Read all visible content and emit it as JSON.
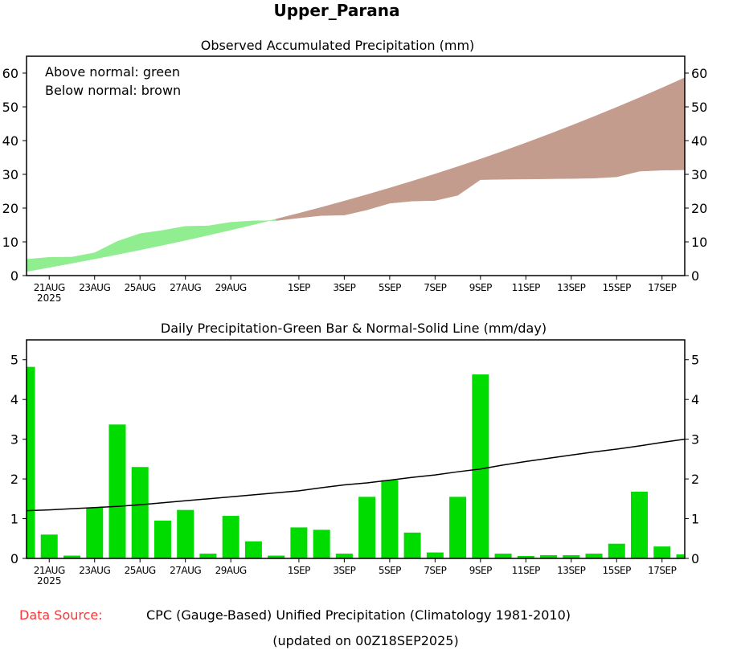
{
  "title": "Upper_Parana",
  "chart_data": [
    {
      "type": "area",
      "title": "Observed Accumulated Precipitation (mm)",
      "legend": [
        "Above normal: green",
        "Below normal: brown"
      ],
      "legend_placement": "top-left",
      "ylim": [
        0,
        65
      ],
      "yticks": [
        0,
        10,
        20,
        30,
        40,
        50,
        60
      ],
      "x_tick_labels": [
        {
          "day": 1,
          "label": "21AUG",
          "sub": "2025"
        },
        {
          "day": 3,
          "label": "23AUG"
        },
        {
          "day": 5,
          "label": "25AUG"
        },
        {
          "day": 7,
          "label": "27AUG"
        },
        {
          "day": 9,
          "label": "29AUG"
        },
        {
          "day": 12,
          "label": "1SEP"
        },
        {
          "day": 14,
          "label": "3SEP"
        },
        {
          "day": 16,
          "label": "5SEP"
        },
        {
          "day": 18,
          "label": "7SEP"
        },
        {
          "day": 20,
          "label": "9SEP"
        },
        {
          "day": 22,
          "label": "11SEP"
        },
        {
          "day": 24,
          "label": "13SEP"
        },
        {
          "day": 26,
          "label": "15SEP"
        },
        {
          "day": 28,
          "label": "17SEP"
        }
      ],
      "series": [
        {
          "name": "Observed accumulated",
          "derived_from": "daily observed cumulative sum"
        },
        {
          "name": "Normal accumulated",
          "derived_from": "daily normal cumulative sum"
        }
      ],
      "colors": {
        "above": "#90ee90",
        "below": "#c49c8e"
      }
    },
    {
      "type": "bar",
      "title": "Daily Precipitation-Green Bar & Normal-Solid Line (mm/day)",
      "ylim": [
        0,
        5.5
      ],
      "yticks": [
        0,
        1,
        2,
        3,
        4,
        5
      ],
      "dates": [
        "20AUG",
        "21AUG",
        "22AUG",
        "23AUG",
        "24AUG",
        "25AUG",
        "26AUG",
        "27AUG",
        "28AUG",
        "29AUG",
        "30AUG",
        "31AUG",
        "1SEP",
        "2SEP",
        "3SEP",
        "4SEP",
        "5SEP",
        "6SEP",
        "7SEP",
        "8SEP",
        "9SEP",
        "10SEP",
        "11SEP",
        "12SEP",
        "13SEP",
        "14SEP",
        "15SEP",
        "16SEP",
        "17SEP",
        "18SEP"
      ],
      "series": [
        {
          "name": "Observed daily",
          "type": "bar",
          "color": "#00dc00",
          "values": [
            4.82,
            0.6,
            0.07,
            1.28,
            3.37,
            2.3,
            0.95,
            1.22,
            0.12,
            1.07,
            0.43,
            0.07,
            0.78,
            0.72,
            0.12,
            1.55,
            1.97,
            0.65,
            0.15,
            1.55,
            4.63,
            0.12,
            0.06,
            0.08,
            0.08,
            0.12,
            0.37,
            1.68,
            0.3,
            0.1
          ]
        },
        {
          "name": "Normal daily",
          "type": "line",
          "color": "#000000",
          "values": [
            1.2,
            1.22,
            1.25,
            1.28,
            1.31,
            1.35,
            1.4,
            1.45,
            1.5,
            1.55,
            1.6,
            1.65,
            1.7,
            1.78,
            1.85,
            1.9,
            1.97,
            2.04,
            2.1,
            2.18,
            2.25,
            2.35,
            2.44,
            2.52,
            2.6,
            2.68,
            2.75,
            2.83,
            2.92,
            3.0
          ]
        }
      ]
    }
  ],
  "footer": {
    "source_label": "Data Source:",
    "source_text": "CPC (Gauge-Based) Unified Precipitation (Climatology 1981-2010)",
    "updated": "(updated on 00Z18SEP2025)"
  }
}
